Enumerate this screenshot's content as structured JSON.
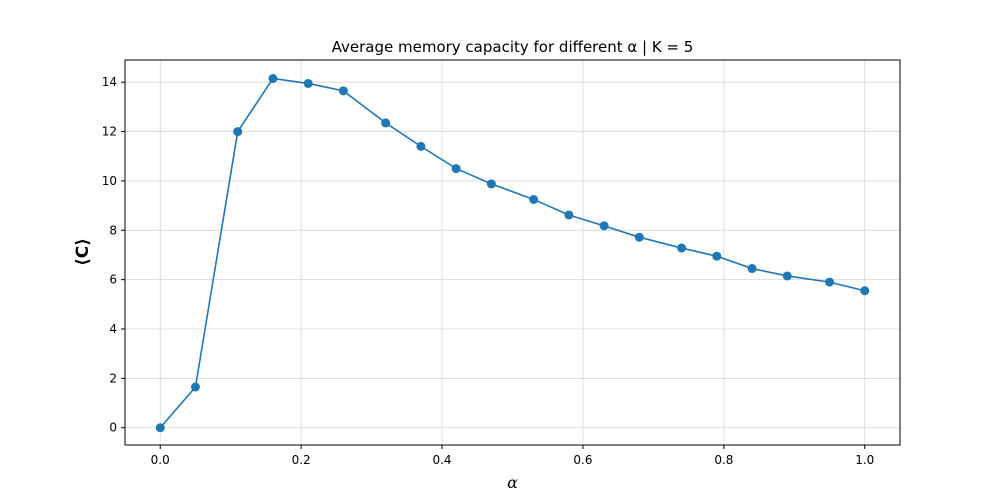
{
  "chart_data": {
    "type": "line",
    "title": "Average memory capacity for different α | K = 5",
    "xlabel": "α",
    "ylabel": "⟨C⟩",
    "xlim": [
      -0.05,
      1.05
    ],
    "ylim": [
      -0.7,
      14.9
    ],
    "xticks": [
      0.0,
      0.2,
      0.4,
      0.6,
      0.8,
      1.0
    ],
    "xtick_labels": [
      "0.0",
      "0.2",
      "0.4",
      "0.6",
      "0.8",
      "1.0"
    ],
    "yticks": [
      0,
      2,
      4,
      6,
      8,
      10,
      12,
      14
    ],
    "ytick_labels": [
      "0",
      "2",
      "4",
      "6",
      "8",
      "10",
      "12",
      "14"
    ],
    "grid": true,
    "color": "#1f77b4",
    "marker": "circle",
    "series": [
      {
        "x": [
          0.0,
          0.05,
          0.11,
          0.16,
          0.21,
          0.26,
          0.32,
          0.37,
          0.42,
          0.47,
          0.53,
          0.58,
          0.63,
          0.68,
          0.74,
          0.79,
          0.84,
          0.89,
          0.95,
          1.0
        ],
        "values": [
          0.0,
          1.65,
          12.0,
          14.15,
          13.95,
          13.65,
          12.35,
          11.4,
          10.5,
          9.88,
          9.25,
          8.62,
          8.18,
          7.72,
          7.28,
          6.95,
          6.45,
          6.15,
          5.9,
          5.55
        ]
      }
    ]
  }
}
